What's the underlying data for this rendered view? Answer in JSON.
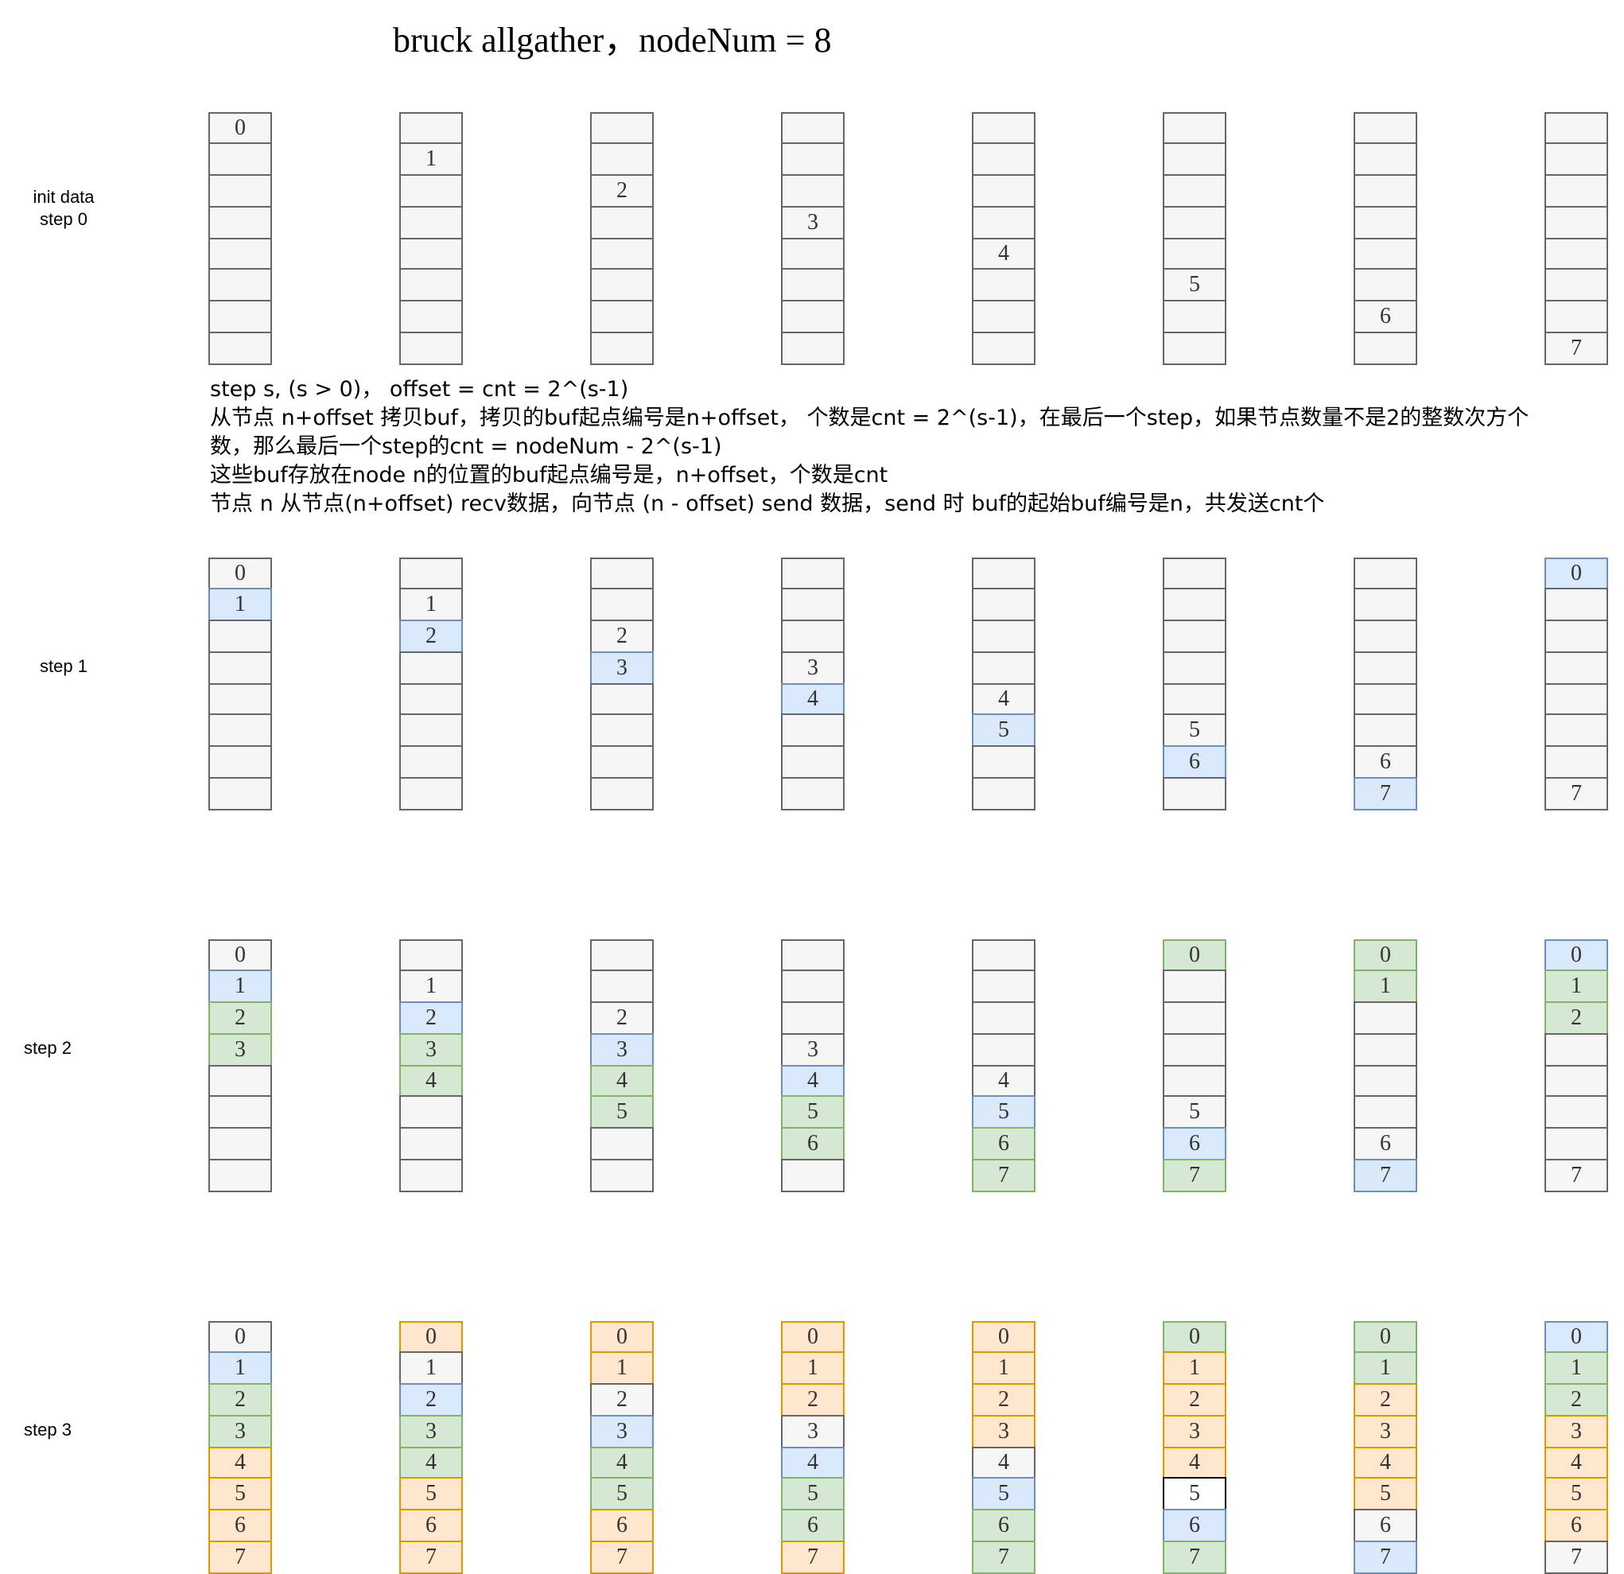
{
  "title": "bruck allgather，nodeNum = 8",
  "colors": {
    "empty": "#f5f5f5",
    "empty_border": "#666666",
    "blue": "#dae8fc",
    "blue_border": "#6c8ebf",
    "green": "#d5e8d4",
    "green_border": "#82b366",
    "orange": "#ffe6cc",
    "orange_border": "#d79b00",
    "white": "#ffffff",
    "white_border": "#000000"
  },
  "description": [
    "step s, (s > 0)，  offset = cnt = 2^(s-1)",
    "从节点 n+offset 拷贝buf，拷贝的buf起点编号是n+offset，    个数是cnt = 2^(s-1)，在最后一个step，如果节点数量不是2的整数次方个",
    "数，那么最后一个step的cnt = nodeNum - 2^(s-1)",
    "这些buf存放在node n的位置的buf起点编号是，n+offset，个数是cnt",
    "节点 n 从节点(n+offset) recv数据，向节点 (n - offset) send 数据，send 时 buf的起始buf编号是n，共发送cnt个"
  ],
  "steps": [
    {
      "label_lines": [
        "init data",
        "step 0"
      ],
      "nodes": [
        [
          [
            "0",
            "empty"
          ],
          [
            "",
            "empty"
          ],
          [
            "",
            "empty"
          ],
          [
            "",
            "empty"
          ],
          [
            "",
            "empty"
          ],
          [
            "",
            "empty"
          ],
          [
            "",
            "empty"
          ],
          [
            "",
            "empty"
          ]
        ],
        [
          [
            "",
            "empty"
          ],
          [
            "1",
            "empty"
          ],
          [
            "",
            "empty"
          ],
          [
            "",
            "empty"
          ],
          [
            "",
            "empty"
          ],
          [
            "",
            "empty"
          ],
          [
            "",
            "empty"
          ],
          [
            "",
            "empty"
          ]
        ],
        [
          [
            "",
            "empty"
          ],
          [
            "",
            "empty"
          ],
          [
            "2",
            "empty"
          ],
          [
            "",
            "empty"
          ],
          [
            "",
            "empty"
          ],
          [
            "",
            "empty"
          ],
          [
            "",
            "empty"
          ],
          [
            "",
            "empty"
          ]
        ],
        [
          [
            "",
            "empty"
          ],
          [
            "",
            "empty"
          ],
          [
            "",
            "empty"
          ],
          [
            "3",
            "empty"
          ],
          [
            "",
            "empty"
          ],
          [
            "",
            "empty"
          ],
          [
            "",
            "empty"
          ],
          [
            "",
            "empty"
          ]
        ],
        [
          [
            "",
            "empty"
          ],
          [
            "",
            "empty"
          ],
          [
            "",
            "empty"
          ],
          [
            "",
            "empty"
          ],
          [
            "4",
            "empty"
          ],
          [
            "",
            "empty"
          ],
          [
            "",
            "empty"
          ],
          [
            "",
            "empty"
          ]
        ],
        [
          [
            "",
            "empty"
          ],
          [
            "",
            "empty"
          ],
          [
            "",
            "empty"
          ],
          [
            "",
            "empty"
          ],
          [
            "",
            "empty"
          ],
          [
            "5",
            "empty"
          ],
          [
            "",
            "empty"
          ],
          [
            "",
            "empty"
          ]
        ],
        [
          [
            "",
            "empty"
          ],
          [
            "",
            "empty"
          ],
          [
            "",
            "empty"
          ],
          [
            "",
            "empty"
          ],
          [
            "",
            "empty"
          ],
          [
            "",
            "empty"
          ],
          [
            "6",
            "empty"
          ],
          [
            "",
            "empty"
          ]
        ],
        [
          [
            "",
            "empty"
          ],
          [
            "",
            "empty"
          ],
          [
            "",
            "empty"
          ],
          [
            "",
            "empty"
          ],
          [
            "",
            "empty"
          ],
          [
            "",
            "empty"
          ],
          [
            "",
            "empty"
          ],
          [
            "7",
            "empty"
          ]
        ]
      ]
    },
    {
      "label_lines": [
        "step 1"
      ],
      "nodes": [
        [
          [
            "0",
            "empty"
          ],
          [
            "1",
            "blue"
          ],
          [
            "",
            "empty"
          ],
          [
            "",
            "empty"
          ],
          [
            "",
            "empty"
          ],
          [
            "",
            "empty"
          ],
          [
            "",
            "empty"
          ],
          [
            "",
            "empty"
          ]
        ],
        [
          [
            "",
            "empty"
          ],
          [
            "1",
            "empty"
          ],
          [
            "2",
            "blue"
          ],
          [
            "",
            "empty"
          ],
          [
            "",
            "empty"
          ],
          [
            "",
            "empty"
          ],
          [
            "",
            "empty"
          ],
          [
            "",
            "empty"
          ]
        ],
        [
          [
            "",
            "empty"
          ],
          [
            "",
            "empty"
          ],
          [
            "2",
            "empty"
          ],
          [
            "3",
            "blue"
          ],
          [
            "",
            "empty"
          ],
          [
            "",
            "empty"
          ],
          [
            "",
            "empty"
          ],
          [
            "",
            "empty"
          ]
        ],
        [
          [
            "",
            "empty"
          ],
          [
            "",
            "empty"
          ],
          [
            "",
            "empty"
          ],
          [
            "3",
            "empty"
          ],
          [
            "4",
            "blue"
          ],
          [
            "",
            "empty"
          ],
          [
            "",
            "empty"
          ],
          [
            "",
            "empty"
          ]
        ],
        [
          [
            "",
            "empty"
          ],
          [
            "",
            "empty"
          ],
          [
            "",
            "empty"
          ],
          [
            "",
            "empty"
          ],
          [
            "4",
            "empty"
          ],
          [
            "5",
            "blue"
          ],
          [
            "",
            "empty"
          ],
          [
            "",
            "empty"
          ]
        ],
        [
          [
            "",
            "empty"
          ],
          [
            "",
            "empty"
          ],
          [
            "",
            "empty"
          ],
          [
            "",
            "empty"
          ],
          [
            "",
            "empty"
          ],
          [
            "5",
            "empty"
          ],
          [
            "6",
            "blue"
          ],
          [
            "",
            "empty"
          ]
        ],
        [
          [
            "",
            "empty"
          ],
          [
            "",
            "empty"
          ],
          [
            "",
            "empty"
          ],
          [
            "",
            "empty"
          ],
          [
            "",
            "empty"
          ],
          [
            "",
            "empty"
          ],
          [
            "6",
            "empty"
          ],
          [
            "7",
            "blue"
          ]
        ],
        [
          [
            "0",
            "blue"
          ],
          [
            "",
            "empty"
          ],
          [
            "",
            "empty"
          ],
          [
            "",
            "empty"
          ],
          [
            "",
            "empty"
          ],
          [
            "",
            "empty"
          ],
          [
            "",
            "empty"
          ],
          [
            "7",
            "empty"
          ]
        ]
      ]
    },
    {
      "label_lines": [
        "step 2"
      ],
      "nodes": [
        [
          [
            "0",
            "empty"
          ],
          [
            "1",
            "blue"
          ],
          [
            "2",
            "green"
          ],
          [
            "3",
            "green"
          ],
          [
            "",
            "empty"
          ],
          [
            "",
            "empty"
          ],
          [
            "",
            "empty"
          ],
          [
            "",
            "empty"
          ]
        ],
        [
          [
            "",
            "empty"
          ],
          [
            "1",
            "empty"
          ],
          [
            "2",
            "blue"
          ],
          [
            "3",
            "green"
          ],
          [
            "4",
            "green"
          ],
          [
            "",
            "empty"
          ],
          [
            "",
            "empty"
          ],
          [
            "",
            "empty"
          ]
        ],
        [
          [
            "",
            "empty"
          ],
          [
            "",
            "empty"
          ],
          [
            "2",
            "empty"
          ],
          [
            "3",
            "blue"
          ],
          [
            "4",
            "green"
          ],
          [
            "5",
            "green"
          ],
          [
            "",
            "empty"
          ],
          [
            "",
            "empty"
          ]
        ],
        [
          [
            "",
            "empty"
          ],
          [
            "",
            "empty"
          ],
          [
            "",
            "empty"
          ],
          [
            "3",
            "empty"
          ],
          [
            "4",
            "blue"
          ],
          [
            "5",
            "green"
          ],
          [
            "6",
            "green"
          ],
          [
            "",
            "empty"
          ]
        ],
        [
          [
            "",
            "empty"
          ],
          [
            "",
            "empty"
          ],
          [
            "",
            "empty"
          ],
          [
            "",
            "empty"
          ],
          [
            "4",
            "empty"
          ],
          [
            "5",
            "blue"
          ],
          [
            "6",
            "green"
          ],
          [
            "7",
            "green"
          ]
        ],
        [
          [
            "0",
            "green"
          ],
          [
            "",
            "empty"
          ],
          [
            "",
            "empty"
          ],
          [
            "",
            "empty"
          ],
          [
            "",
            "empty"
          ],
          [
            "5",
            "empty"
          ],
          [
            "6",
            "blue"
          ],
          [
            "7",
            "green"
          ]
        ],
        [
          [
            "0",
            "green"
          ],
          [
            "1",
            "green"
          ],
          [
            "",
            "empty"
          ],
          [
            "",
            "empty"
          ],
          [
            "",
            "empty"
          ],
          [
            "",
            "empty"
          ],
          [
            "6",
            "empty"
          ],
          [
            "7",
            "blue"
          ]
        ],
        [
          [
            "0",
            "blue"
          ],
          [
            "1",
            "green"
          ],
          [
            "2",
            "green"
          ],
          [
            "",
            "empty"
          ],
          [
            "",
            "empty"
          ],
          [
            "",
            "empty"
          ],
          [
            "",
            "empty"
          ],
          [
            "7",
            "empty"
          ]
        ]
      ]
    },
    {
      "label_lines": [
        "step 3"
      ],
      "nodes": [
        [
          [
            "0",
            "empty"
          ],
          [
            "1",
            "blue"
          ],
          [
            "2",
            "green"
          ],
          [
            "3",
            "green"
          ],
          [
            "4",
            "orange"
          ],
          [
            "5",
            "orange"
          ],
          [
            "6",
            "orange"
          ],
          [
            "7",
            "orange"
          ]
        ],
        [
          [
            "0",
            "orange"
          ],
          [
            "1",
            "empty"
          ],
          [
            "2",
            "blue"
          ],
          [
            "3",
            "green"
          ],
          [
            "4",
            "green"
          ],
          [
            "5",
            "orange"
          ],
          [
            "6",
            "orange"
          ],
          [
            "7",
            "orange"
          ]
        ],
        [
          [
            "0",
            "orange"
          ],
          [
            "1",
            "orange"
          ],
          [
            "2",
            "empty"
          ],
          [
            "3",
            "blue"
          ],
          [
            "4",
            "green"
          ],
          [
            "5",
            "green"
          ],
          [
            "6",
            "orange"
          ],
          [
            "7",
            "orange"
          ]
        ],
        [
          [
            "0",
            "orange"
          ],
          [
            "1",
            "orange"
          ],
          [
            "2",
            "orange"
          ],
          [
            "3",
            "empty"
          ],
          [
            "4",
            "blue"
          ],
          [
            "5",
            "green"
          ],
          [
            "6",
            "green"
          ],
          [
            "7",
            "orange"
          ]
        ],
        [
          [
            "0",
            "orange"
          ],
          [
            "1",
            "orange"
          ],
          [
            "2",
            "orange"
          ],
          [
            "3",
            "orange"
          ],
          [
            "4",
            "empty"
          ],
          [
            "5",
            "blue"
          ],
          [
            "6",
            "green"
          ],
          [
            "7",
            "green"
          ]
        ],
        [
          [
            "0",
            "green"
          ],
          [
            "1",
            "orange"
          ],
          [
            "2",
            "orange"
          ],
          [
            "3",
            "orange"
          ],
          [
            "4",
            "orange"
          ],
          [
            "5",
            "white"
          ],
          [
            "6",
            "blue"
          ],
          [
            "7",
            "green"
          ]
        ],
        [
          [
            "0",
            "green"
          ],
          [
            "1",
            "green"
          ],
          [
            "2",
            "orange"
          ],
          [
            "3",
            "orange"
          ],
          [
            "4",
            "orange"
          ],
          [
            "5",
            "orange"
          ],
          [
            "6",
            "empty"
          ],
          [
            "7",
            "blue"
          ]
        ],
        [
          [
            "0",
            "blue"
          ],
          [
            "1",
            "green"
          ],
          [
            "2",
            "green"
          ],
          [
            "3",
            "orange"
          ],
          [
            "4",
            "orange"
          ],
          [
            "5",
            "orange"
          ],
          [
            "6",
            "orange"
          ],
          [
            "7",
            "empty"
          ]
        ]
      ]
    }
  ]
}
